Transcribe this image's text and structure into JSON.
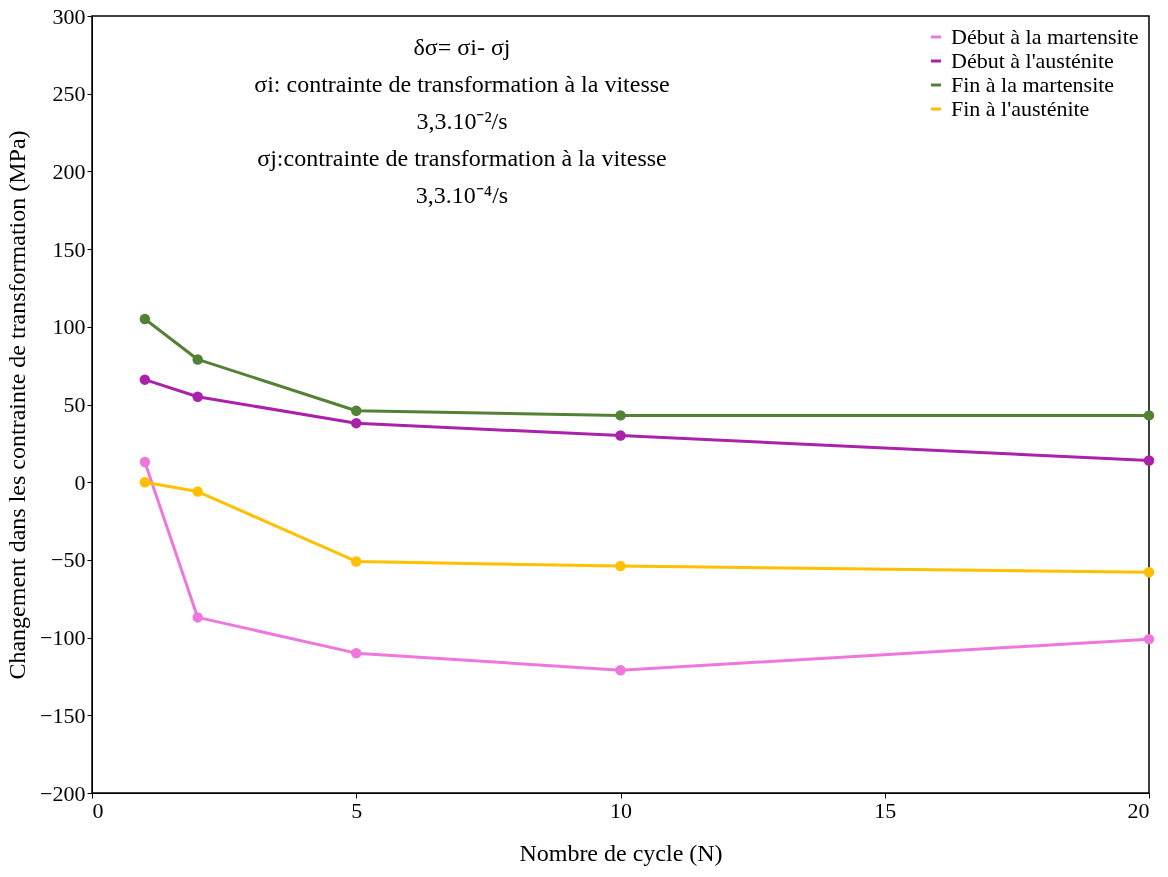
{
  "chart_data": {
    "type": "line",
    "xlabel": "Nombre de cycle (N)",
    "ylabel": "Changement dans les contrainte de transformation (MPa)",
    "x": [
      1,
      2,
      5,
      10,
      20
    ],
    "series": [
      {
        "name": "Début à la martensite",
        "color": "#ee77dd",
        "values": [
          13,
          -87,
          -110,
          -121,
          -101
        ]
      },
      {
        "name": "Début  à l'austénite",
        "color": "#aa22aa",
        "values": [
          66,
          55,
          38,
          30,
          14
        ]
      },
      {
        "name": "Fin à la martensite",
        "color": "#538135",
        "values": [
          105,
          79,
          46,
          43,
          43
        ]
      },
      {
        "name": "Fin à l'austénite",
        "color": "#ffc000",
        "values": [
          0,
          -6,
          -51,
          -54,
          -58
        ]
      }
    ],
    "xlim": [
      0,
      20
    ],
    "xticks": [
      0,
      5,
      10,
      15,
      20
    ],
    "ylim": [
      -200,
      300
    ],
    "yticks": [
      -200,
      -150,
      -100,
      -50,
      0,
      50,
      100,
      150,
      200,
      250,
      300
    ],
    "annotations": [
      "δσ= σi- σj",
      "σi:  contrainte de transformation à la vitesse",
      "3,3.10⁻²/s",
      "σj:contrainte de transformation à la vitesse",
      "3,3.10⁻⁴/s"
    ],
    "legend": "top right",
    "marker": "circle",
    "line_style": "solid",
    "grid": false
  }
}
